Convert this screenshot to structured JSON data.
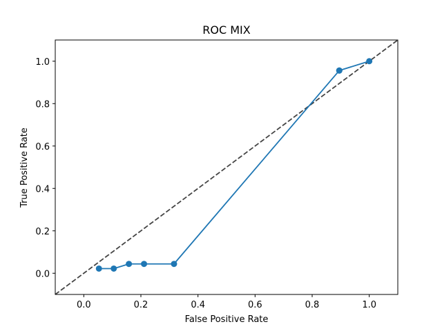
{
  "chart_data": {
    "type": "line",
    "title": "ROC MIX",
    "xlabel": "False Positive Rate",
    "ylabel": "True Positive Rate",
    "xlim": [
      -0.1,
      1.1
    ],
    "ylim": [
      -0.1,
      1.1
    ],
    "xticks": [
      0.0,
      0.2,
      0.4,
      0.6,
      0.8,
      1.0
    ],
    "yticks": [
      0.0,
      0.2,
      0.4,
      0.6,
      0.8,
      1.0
    ],
    "xtick_labels": [
      "0.0",
      "0.2",
      "0.4",
      "0.6",
      "0.8",
      "1.0"
    ],
    "ytick_labels": [
      "0.0",
      "0.2",
      "0.4",
      "0.6",
      "0.8",
      "1.0"
    ],
    "grid": false,
    "series": [
      {
        "color": "#1f77b4",
        "marker": "circle",
        "x": [
          0.053,
          0.105,
          0.158,
          0.211,
          0.316,
          0.895,
          0.895,
          1.0
        ],
        "y": [
          0.022,
          0.022,
          0.044,
          0.044,
          0.044,
          0.956,
          0.956,
          1.0
        ]
      }
    ],
    "reference_line": {
      "style": "dashed",
      "color": "#444444",
      "from": [
        -0.1,
        -0.1
      ],
      "to": [
        1.1,
        1.1
      ]
    }
  }
}
